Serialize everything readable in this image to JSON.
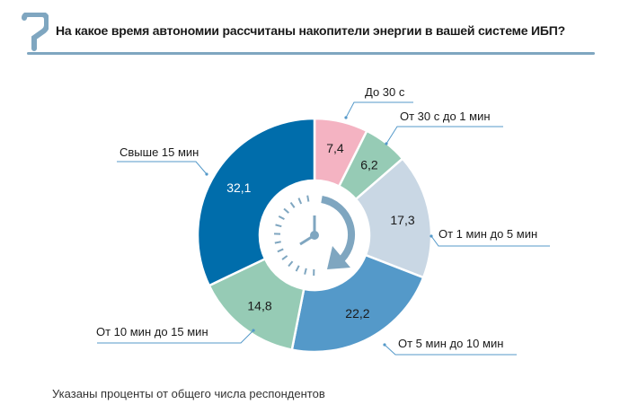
{
  "header": {
    "title": "На какое время автономии рассчитаны накопители энергии в вашей системе ИБП?"
  },
  "footnote": "Указаны проценты от общего числа респондентов",
  "chart_data": {
    "type": "pie",
    "subtype": "donut",
    "title": "На какое время автономии рассчитаны накопители энергии в вашей системе ИБП?",
    "unit": "%",
    "slices": [
      {
        "label": "До 30 с",
        "value": 7.4,
        "value_label": "7,4",
        "color": "#f4b3c2",
        "text_color": "#1a1a1a"
      },
      {
        "label": "От 30 с до 1 мин",
        "value": 6.2,
        "value_label": "6,2",
        "color": "#96cbb5",
        "text_color": "#1a1a1a"
      },
      {
        "label": "От 1 мин до 5 мин",
        "value": 17.3,
        "value_label": "17,3",
        "color": "#c9d7e4",
        "text_color": "#1a1a1a"
      },
      {
        "label": "От 5 мин до 10 мин",
        "value": 22.2,
        "value_label": "22,2",
        "color": "#5499c9",
        "text_color": "#1a1a1a"
      },
      {
        "label": "От 10 мин до 15 мин",
        "value": 14.8,
        "value_label": "14,8",
        "color": "#96cbb5",
        "text_color": "#1a1a1a"
      },
      {
        "label": "Свыше 15 мин",
        "value": 32.1,
        "value_label": "32,1",
        "color": "#006dab",
        "text_color": "#ffffff"
      }
    ],
    "accent_color": "#7fa6c0",
    "leader_color": "#5499c9"
  }
}
